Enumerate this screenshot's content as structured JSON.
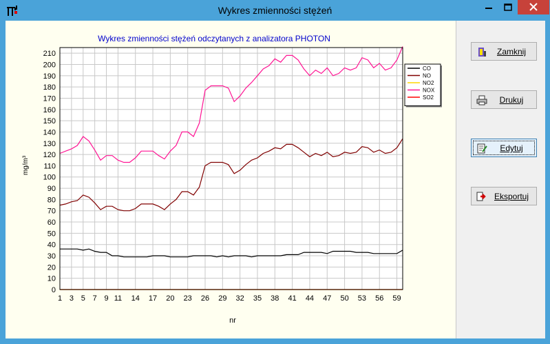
{
  "window": {
    "title": "Wykres zmienności stężeń"
  },
  "buttons": {
    "close": "Zamknij",
    "print": "Drukuj",
    "edit": "Edytuj",
    "export": "Eksportuj"
  },
  "chart_data": {
    "type": "line",
    "title": "Wykres zmienności stężeń odczytanych z analizatora PHOTON",
    "xlabel": "nr",
    "ylabel": "mg/m³",
    "ylim": [
      0,
      215
    ],
    "xlim": [
      1,
      60
    ],
    "x_ticks": [
      1,
      3,
      5,
      7,
      9,
      11,
      14,
      17,
      20,
      23,
      26,
      29,
      32,
      35,
      38,
      41,
      44,
      47,
      50,
      53,
      56,
      59
    ],
    "y_ticks": [
      0,
      10,
      20,
      30,
      40,
      50,
      60,
      70,
      80,
      90,
      100,
      110,
      120,
      130,
      140,
      150,
      160,
      170,
      180,
      190,
      200,
      210
    ],
    "grid": true,
    "legend_position": "right",
    "x": [
      1,
      2,
      3,
      4,
      5,
      6,
      7,
      8,
      9,
      10,
      11,
      12,
      13,
      14,
      15,
      16,
      17,
      18,
      19,
      20,
      21,
      22,
      23,
      24,
      25,
      26,
      27,
      28,
      29,
      30,
      31,
      32,
      33,
      34,
      35,
      36,
      37,
      38,
      39,
      40,
      41,
      42,
      43,
      44,
      45,
      46,
      47,
      48,
      49,
      50,
      51,
      52,
      53,
      54,
      55,
      56,
      57,
      58,
      59,
      60
    ],
    "series": [
      {
        "name": "CO",
        "color": "#000000",
        "values": [
          36,
          36,
          36,
          36,
          35,
          36,
          34,
          33,
          33,
          30,
          30,
          29,
          29,
          29,
          29,
          29,
          30,
          30,
          30,
          29,
          29,
          29,
          29,
          30,
          30,
          30,
          30,
          29,
          30,
          29,
          30,
          30,
          30,
          29,
          30,
          30,
          30,
          30,
          30,
          31,
          31,
          31,
          33,
          33,
          33,
          33,
          32,
          34,
          34,
          34,
          34,
          33,
          33,
          33,
          32,
          32,
          32,
          32,
          32,
          35
        ]
      },
      {
        "name": "NO",
        "color": "#800000",
        "values": [
          75,
          76,
          78,
          79,
          84,
          82,
          77,
          71,
          74,
          74,
          71,
          70,
          70,
          72,
          76,
          76,
          76,
          74,
          71,
          76,
          80,
          87,
          87,
          84,
          91,
          110,
          113,
          113,
          113,
          111,
          103,
          106,
          111,
          115,
          117,
          121,
          123,
          126,
          125,
          129,
          129,
          126,
          122,
          118,
          121,
          119,
          122,
          118,
          119,
          122,
          121,
          122,
          127,
          126,
          122,
          124,
          121,
          122,
          126,
          134
        ]
      },
      {
        "name": "NO2",
        "color": "#ffd700",
        "values": [
          0,
          0,
          0,
          0,
          0,
          0,
          0,
          0,
          0,
          0,
          0,
          0,
          0,
          0,
          0,
          0,
          0,
          0,
          0,
          0,
          0,
          0,
          0,
          0,
          0,
          0,
          0,
          0,
          0,
          0,
          0,
          0,
          0,
          0,
          0,
          0,
          0,
          0,
          0,
          0,
          0,
          0,
          0,
          0,
          0,
          0,
          0,
          0,
          0,
          0,
          0,
          0,
          0,
          0,
          0,
          0,
          0,
          0,
          0,
          0
        ]
      },
      {
        "name": "NOX",
        "color": "#ff1493",
        "values": [
          121,
          123,
          125,
          128,
          136,
          132,
          124,
          115,
          119,
          119,
          115,
          113,
          113,
          117,
          123,
          123,
          123,
          119,
          116,
          123,
          128,
          140,
          140,
          136,
          148,
          177,
          181,
          181,
          181,
          179,
          167,
          172,
          179,
          184,
          190,
          196,
          199,
          205,
          202,
          208,
          208,
          204,
          196,
          190,
          195,
          192,
          197,
          190,
          192,
          197,
          195,
          197,
          206,
          204,
          197,
          201,
          195,
          197,
          204,
          216
        ]
      },
      {
        "name": "SO2",
        "color": "#ff0000",
        "values": [
          0,
          0,
          0,
          0,
          0,
          0,
          0,
          0,
          0,
          0,
          0,
          0,
          0,
          0,
          0,
          0,
          0,
          0,
          0,
          0,
          0,
          0,
          0,
          0,
          0,
          0,
          0,
          0,
          0,
          0,
          0,
          0,
          0,
          0,
          0,
          0,
          0,
          0,
          0,
          0,
          0,
          0,
          0,
          0,
          0,
          0,
          0,
          0,
          0,
          0,
          0,
          0,
          0,
          0,
          0,
          0,
          0,
          0,
          0,
          0
        ]
      }
    ]
  }
}
